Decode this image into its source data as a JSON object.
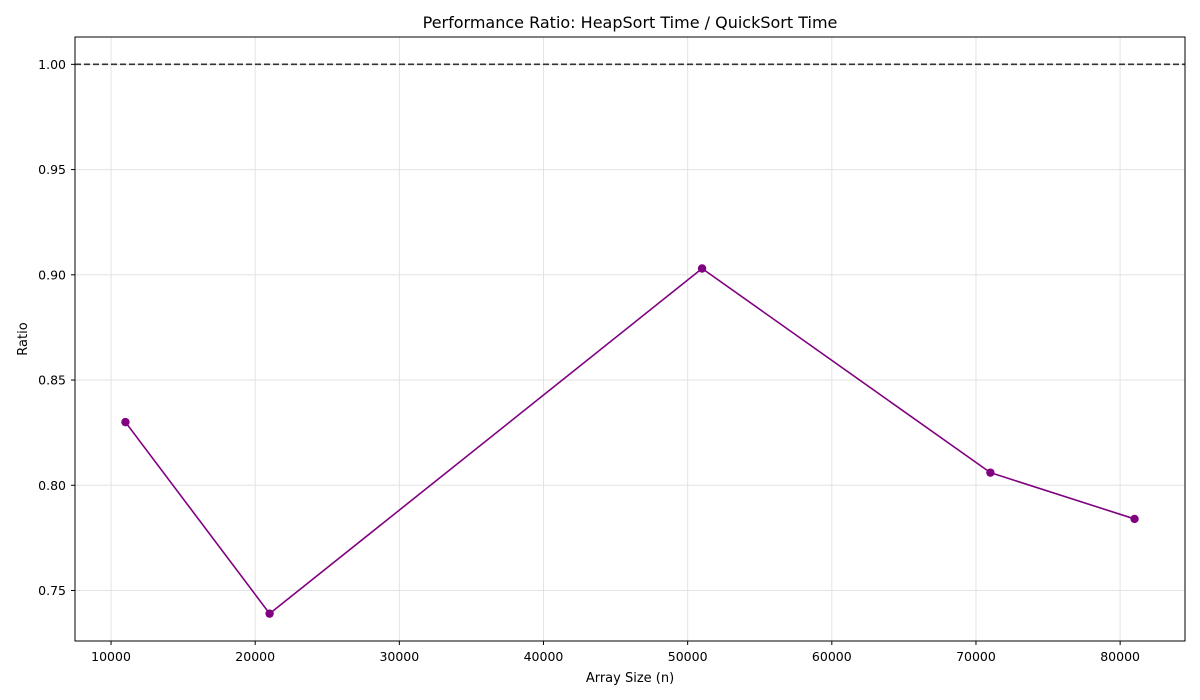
{
  "chart_data": {
    "type": "line",
    "title": "Performance Ratio: HeapSort Time / QuickSort Time",
    "xlabel": "Array Size (n)",
    "ylabel": "Ratio",
    "x": [
      11000,
      21000,
      51000,
      71000,
      81000
    ],
    "series": [
      {
        "values": [
          0.83,
          0.739,
          0.903,
          0.806,
          0.784
        ],
        "color": "#800080",
        "marker": "circle"
      }
    ],
    "reference_line": {
      "y": 1.0,
      "style": "dashed",
      "color": "#333333"
    },
    "xlim": [
      7500,
      84500
    ],
    "ylim": [
      0.726,
      1.013
    ],
    "xticks": [
      10000,
      20000,
      30000,
      40000,
      50000,
      60000,
      70000,
      80000
    ],
    "xtick_labels": [
      "10000",
      "20000",
      "30000",
      "40000",
      "50000",
      "60000",
      "70000",
      "80000"
    ],
    "yticks": [
      0.75,
      0.8,
      0.85,
      0.9,
      0.95,
      1.0
    ],
    "ytick_labels": [
      "0.75",
      "0.80",
      "0.85",
      "0.90",
      "0.95",
      "1.00"
    ],
    "grid": true
  }
}
